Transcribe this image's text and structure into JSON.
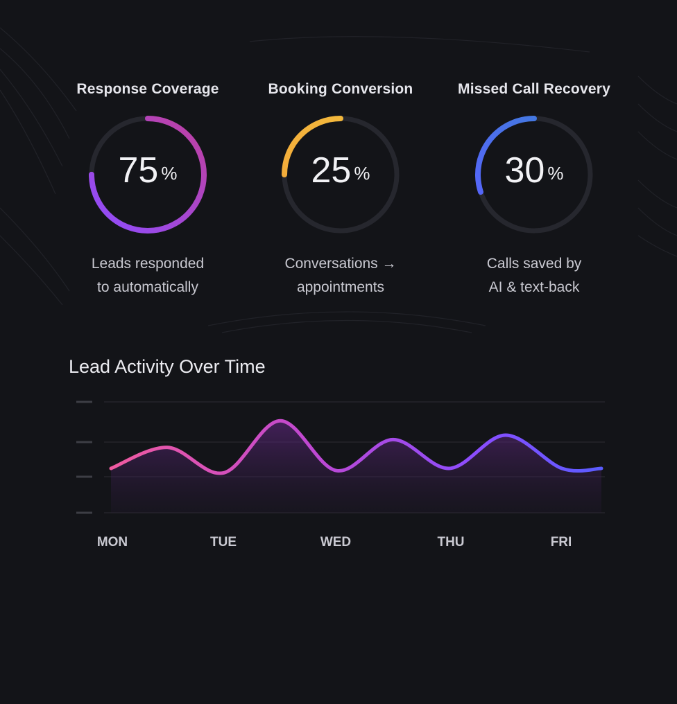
{
  "metrics": [
    {
      "title": "Response Coverage",
      "value": "75",
      "unit": "%",
      "fraction": 0.75,
      "desc_line1": "Leads responded",
      "desc_line2": "to automatically",
      "color_start": "#8e4dff",
      "color_end": "#c0409f"
    },
    {
      "title": "Booking Conversion",
      "value": "25",
      "unit": "%",
      "fraction": 0.25,
      "desc_line1": "Conversations →",
      "desc_line2": "appointments",
      "color_start": "#f5a83a",
      "color_end": "#f2bd3d"
    },
    {
      "title": "Missed Call Recovery",
      "value": "30",
      "unit": "%",
      "fraction": 0.3,
      "desc_line1": "Calls saved by",
      "desc_line2": "AI & text-back",
      "color_start": "#5a61ff",
      "color_end": "#3d7fd8"
    }
  ],
  "chart_data": {
    "type": "area",
    "title": "Lead Activity Over Time",
    "categories": [
      "MON",
      "TUE",
      "WED",
      "THU",
      "FRI"
    ],
    "x": [
      0,
      0.5,
      1,
      1.5,
      2,
      2.5,
      3,
      3.5,
      4,
      4.35
    ],
    "series": [
      {
        "values": [
          40,
          59,
          36,
          83,
          38,
          66,
          40,
          70,
          40,
          40
        ]
      }
    ],
    "ylim": [
      0,
      100
    ],
    "grid": true,
    "colors": [
      "#f05aa0",
      "#c048d0",
      "#8a4dff",
      "#5a5cff"
    ]
  }
}
